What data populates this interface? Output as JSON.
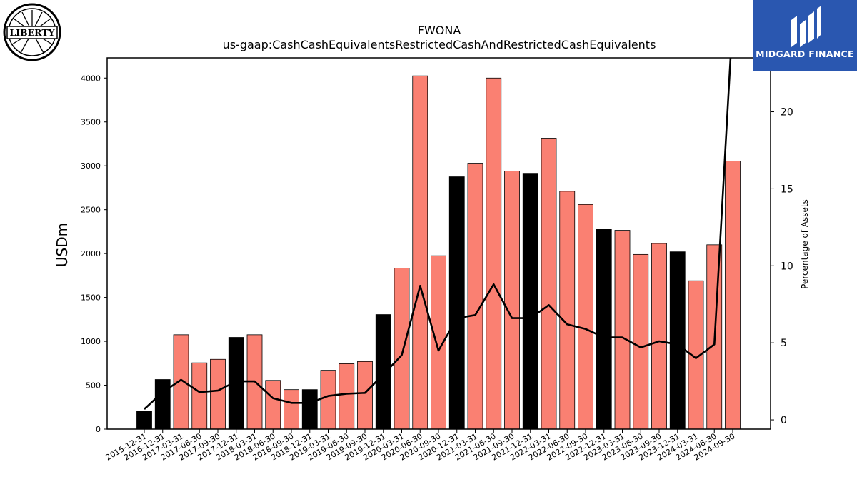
{
  "chart_data": {
    "type": "bar",
    "title": "FWONA",
    "subtitle": "us-gaap:CashCashEquivalentsRestrictedCashAndRestrictedCashEquivalents",
    "ylabel": "USDm",
    "y2label": "Percentage of Assets",
    "ylim": [
      0,
      4230
    ],
    "y2lim": [
      -0.6,
      23.5
    ],
    "yticks": [
      0,
      500,
      1000,
      1500,
      2000,
      2500,
      3000,
      3500,
      4000
    ],
    "y2ticks": [
      0,
      5,
      10,
      15,
      20
    ],
    "grid": false,
    "categories": [
      "2015-12-31",
      "2016-12-31",
      "2017-03-31",
      "2017-06-30",
      "2017-09-30",
      "2017-12-31",
      "2018-03-31",
      "2018-06-30",
      "2018-09-30",
      "2018-12-31",
      "2019-03-31",
      "2019-06-30",
      "2019-09-30",
      "2019-12-31",
      "2020-03-31",
      "2020-06-30",
      "2020-09-30",
      "2020-12-31",
      "2021-03-31",
      "2021-06-30",
      "2021-09-30",
      "2021-12-31",
      "2022-03-31",
      "2022-06-30",
      "2022-09-30",
      "2022-12-31",
      "2023-03-31",
      "2023-06-30",
      "2023-09-30",
      "2023-12-31",
      "2024-03-31",
      "2024-06-30",
      "2024-09-30"
    ],
    "values": [
      205,
      565,
      1075,
      755,
      795,
      1045,
      1075,
      555,
      450,
      450,
      670,
      745,
      770,
      1305,
      1835,
      4025,
      1975,
      2875,
      3030,
      4000,
      2940,
      2915,
      3315,
      2710,
      2560,
      2275,
      2265,
      1990,
      2115,
      2020,
      1690,
      2100,
      3055
    ],
    "bar_colors": [
      "#000000",
      "#000000",
      "#fa8072",
      "#fa8072",
      "#fa8072",
      "#000000",
      "#fa8072",
      "#fa8072",
      "#fa8072",
      "#000000",
      "#fa8072",
      "#fa8072",
      "#fa8072",
      "#000000",
      "#fa8072",
      "#fa8072",
      "#fa8072",
      "#000000",
      "#fa8072",
      "#fa8072",
      "#fa8072",
      "#000000",
      "#fa8072",
      "#fa8072",
      "#fa8072",
      "#000000",
      "#fa8072",
      "#fa8072",
      "#fa8072",
      "#000000",
      "#fa8072",
      "#fa8072",
      "#fa8072"
    ],
    "line_values": [
      0.7,
      1.8,
      2.6,
      1.8,
      1.9,
      2.5,
      2.5,
      1.4,
      1.1,
      1.1,
      1.55,
      1.7,
      1.75,
      2.95,
      4.2,
      8.7,
      4.5,
      6.6,
      6.8,
      8.8,
      6.6,
      6.6,
      7.45,
      6.2,
      5.9,
      5.35,
      5.35,
      4.7,
      5.1,
      4.9,
      4.0,
      4.9,
      26.0
    ],
    "line_color": "#000000"
  },
  "logos": {
    "left_text": "LIBERTY",
    "right_text": "MIDGARD FINANCE"
  }
}
